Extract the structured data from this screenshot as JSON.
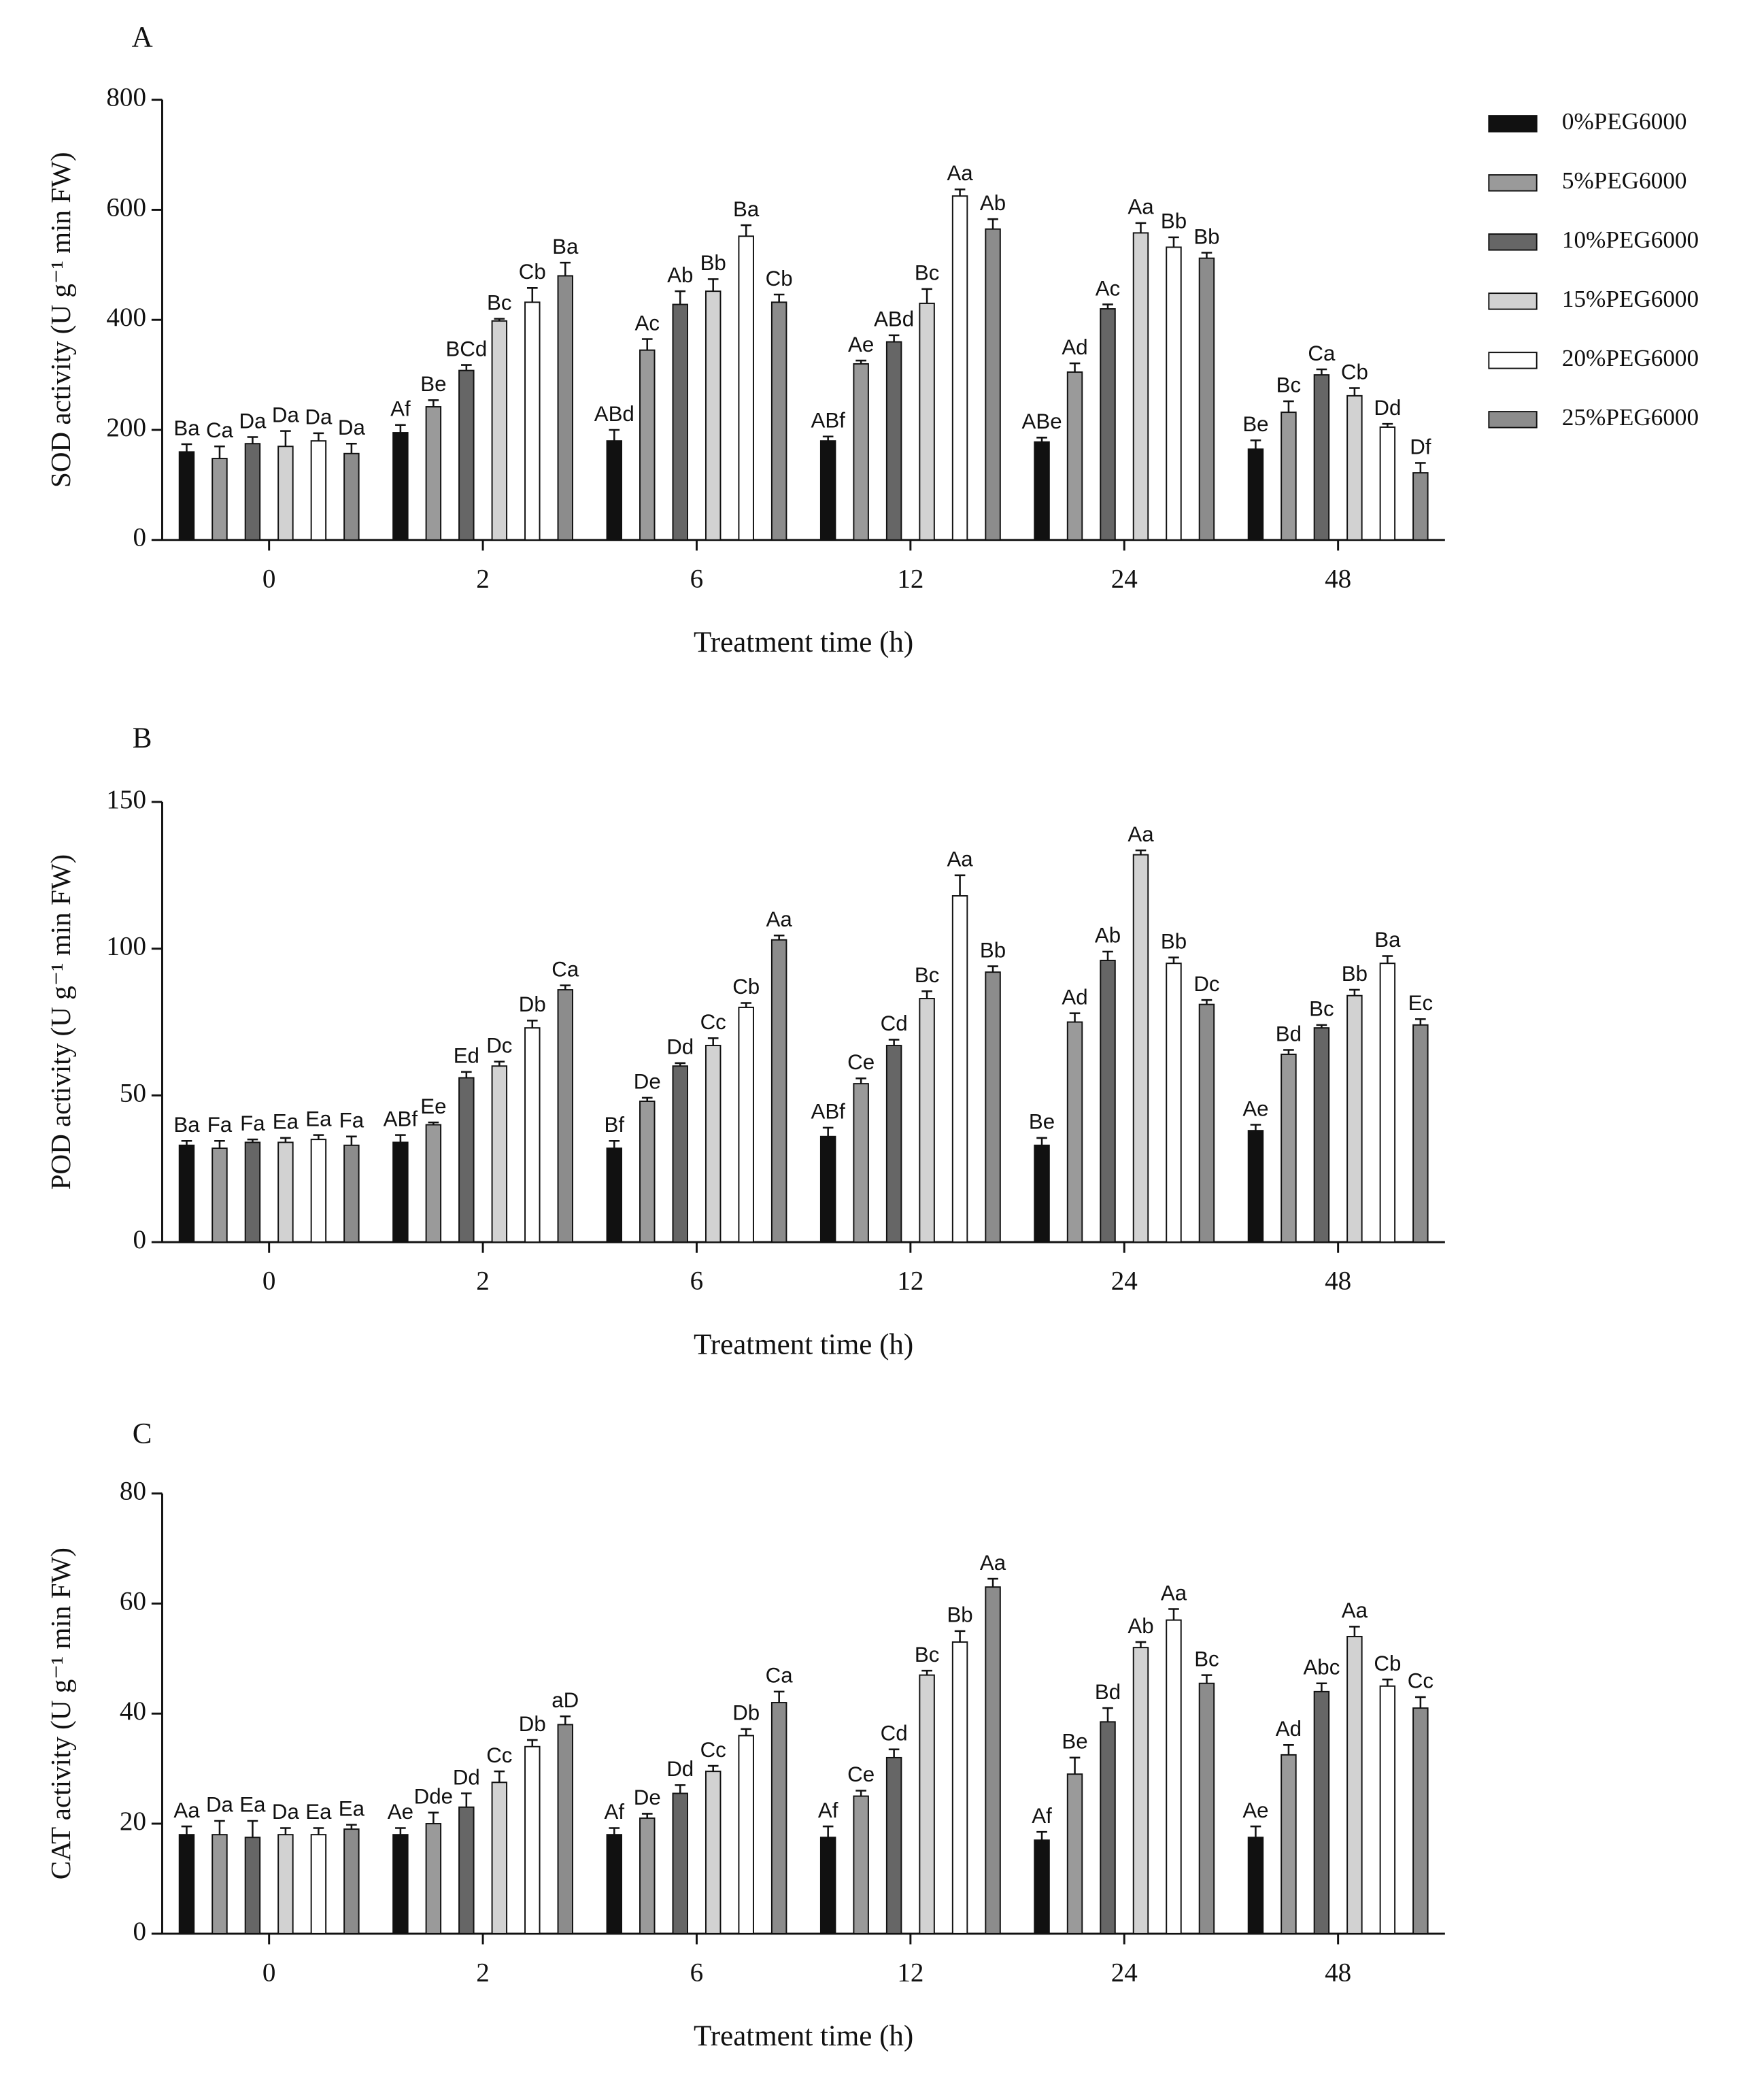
{
  "chart_data": [
    {
      "type": "bar",
      "panel": "A",
      "xlabel": "Treatment time (h)",
      "ylabel": "SOD activity (U g⁻¹ min FW)",
      "categories": [
        "0",
        "2",
        "6",
        "12",
        "24",
        "48"
      ],
      "ylim": [
        0,
        800
      ],
      "yticks": [
        0,
        200,
        400,
        600,
        800
      ],
      "legend": "right",
      "series": [
        {
          "name": "0%PEG6000",
          "color": "#111111",
          "values": [
            160,
            195,
            180,
            180,
            178,
            165
          ],
          "errors": [
            14,
            14,
            20,
            8,
            8,
            16
          ],
          "letters": [
            "Ba",
            "Af",
            "ABd",
            "ABf",
            "ABe",
            "Be"
          ]
        },
        {
          "name": "5%PEG6000",
          "color": "#9a9a9a",
          "values": [
            148,
            242,
            345,
            320,
            305,
            232
          ],
          "errors": [
            22,
            12,
            20,
            6,
            16,
            20
          ],
          "letters": [
            "Ca",
            "Be",
            "Ac",
            "Ae",
            "Ad",
            "Bc"
          ]
        },
        {
          "name": "10%PEG6000",
          "color": "#666666",
          "values": [
            175,
            308,
            428,
            360,
            420,
            300
          ],
          "errors": [
            12,
            10,
            24,
            12,
            8,
            10
          ],
          "letters": [
            "Da",
            "BCd",
            "Ab",
            "ABd",
            "Ac",
            "Ca"
          ]
        },
        {
          "name": "15%PEG6000",
          "color": "#d2d2d2",
          "values": [
            170,
            398,
            452,
            430,
            558,
            262
          ],
          "errors": [
            28,
            4,
            22,
            26,
            18,
            14
          ],
          "letters": [
            "Da",
            "Bc",
            "Bb",
            "Bc",
            "Aa",
            "Cb"
          ]
        },
        {
          "name": "20%PEG6000",
          "color": "#ffffff",
          "values": [
            180,
            432,
            552,
            625,
            532,
            205
          ],
          "errors": [
            14,
            26,
            20,
            12,
            18,
            6
          ],
          "letters": [
            "Da",
            "Cb",
            "Ba",
            "Aa",
            "Bb",
            "Dd"
          ]
        },
        {
          "name": "25%PEG6000",
          "color": "#8c8c8c",
          "values": [
            157,
            480,
            432,
            565,
            512,
            122
          ],
          "errors": [
            18,
            24,
            14,
            18,
            10,
            18
          ],
          "letters": [
            "Da",
            "Ba",
            "Cb",
            "Ab",
            "Bb",
            "Df"
          ]
        }
      ]
    },
    {
      "type": "bar",
      "panel": "B",
      "xlabel": "Treatment time (h)",
      "ylabel": "POD activity (U g⁻¹ min FW)",
      "categories": [
        "0",
        "2",
        "6",
        "12",
        "24",
        "48"
      ],
      "ylim": [
        0,
        150
      ],
      "yticks": [
        0,
        50,
        100,
        150
      ],
      "series": [
        {
          "name": "0%PEG6000",
          "color": "#111111",
          "values": [
            33,
            34,
            32,
            36,
            33,
            38
          ],
          "errors": [
            1.5,
            2.5,
            2.5,
            3,
            2.5,
            2
          ],
          "letters": [
            "Ba",
            "ABf",
            "Bf",
            "ABf",
            "Be",
            "Ae"
          ]
        },
        {
          "name": "5%PEG6000",
          "color": "#9a9a9a",
          "values": [
            32,
            40,
            48,
            54,
            75,
            64
          ],
          "errors": [
            2.5,
            0.8,
            1.2,
            1.8,
            3,
            1.5
          ],
          "letters": [
            "Fa",
            "Ee",
            "De",
            "Ce",
            "Ad",
            "Bd"
          ]
        },
        {
          "name": "10%PEG6000",
          "color": "#666666",
          "values": [
            34,
            56,
            60,
            67,
            96,
            73
          ],
          "errors": [
            1,
            2,
            1,
            2,
            3,
            1
          ],
          "letters": [
            "Fa",
            "Ed",
            "Dd",
            "Cd",
            "Ab",
            "Bc"
          ]
        },
        {
          "name": "15%PEG6000",
          "color": "#d2d2d2",
          "values": [
            34,
            60,
            67,
            83,
            132,
            84
          ],
          "errors": [
            1.5,
            1.5,
            2.5,
            2.5,
            1.5,
            2
          ],
          "letters": [
            "Ea",
            "Dc",
            "Cc",
            "Bc",
            "Aa",
            "Bb"
          ]
        },
        {
          "name": "20%PEG6000",
          "color": "#ffffff",
          "values": [
            35,
            73,
            80,
            118,
            95,
            95
          ],
          "errors": [
            1.5,
            2.5,
            1.5,
            7,
            2,
            2.5
          ],
          "letters": [
            "Ea",
            "Db",
            "Cb",
            "Aa",
            "Bb",
            "Ba"
          ]
        },
        {
          "name": "25%PEG6000",
          "color": "#8c8c8c",
          "values": [
            33,
            86,
            103,
            92,
            81,
            74
          ],
          "errors": [
            3,
            1.5,
            1.5,
            2,
            1.5,
            2
          ],
          "letters": [
            "Fa",
            "Ca",
            "Aa",
            "Bb",
            "Dc",
            "Ec"
          ]
        }
      ]
    },
    {
      "type": "bar",
      "panel": "C",
      "xlabel": "Treatment time (h)",
      "ylabel": "CAT activity (U g⁻¹ min FW)",
      "categories": [
        "0",
        "2",
        "6",
        "12",
        "24",
        "48"
      ],
      "ylim": [
        0,
        80
      ],
      "yticks": [
        0,
        20,
        40,
        60,
        80
      ],
      "series": [
        {
          "name": "0%PEG6000",
          "color": "#111111",
          "values": [
            18,
            18,
            18,
            17.5,
            17,
            17.5
          ],
          "errors": [
            1.5,
            1.2,
            1.2,
            2,
            1.5,
            2
          ],
          "letters": [
            "Aa",
            "Ae",
            "Af",
            "Af",
            "Af",
            "Ae"
          ]
        },
        {
          "name": "5%PEG6000",
          "color": "#9a9a9a",
          "values": [
            18,
            20,
            21,
            25,
            29,
            32.5
          ],
          "errors": [
            2.5,
            2,
            0.8,
            1,
            3,
            1.8
          ],
          "letters": [
            "Da",
            "Dde",
            "De",
            "Ce",
            "Be",
            "Ad"
          ]
        },
        {
          "name": "10%PEG6000",
          "color": "#666666",
          "values": [
            17.5,
            23,
            25.5,
            32,
            38.5,
            44
          ],
          "errors": [
            3,
            2.5,
            1.5,
            1.5,
            2.5,
            1.5
          ],
          "letters": [
            "Ea",
            "Dd",
            "Dd",
            "Cd",
            "Bd",
            "Abc"
          ]
        },
        {
          "name": "15%PEG6000",
          "color": "#d2d2d2",
          "values": [
            18,
            27.5,
            29.5,
            47,
            52,
            54
          ],
          "errors": [
            1.2,
            2,
            1,
            0.8,
            1,
            1.8
          ],
          "letters": [
            "Da",
            "Cc",
            "Cc",
            "Bc",
            "Ab",
            "Aa"
          ]
        },
        {
          "name": "20%PEG6000",
          "color": "#ffffff",
          "values": [
            18,
            34,
            36,
            53,
            57,
            45
          ],
          "errors": [
            1.2,
            1.2,
            1.2,
            2,
            2,
            1.2
          ],
          "letters": [
            "Ea",
            "Db",
            "Db",
            "Bb",
            "Aa",
            "Cb"
          ]
        },
        {
          "name": "25%PEG6000",
          "color": "#8c8c8c",
          "values": [
            19,
            38,
            42,
            63,
            45.5,
            41
          ],
          "errors": [
            0.8,
            1.5,
            2,
            1.5,
            1.5,
            2
          ],
          "letters": [
            "Ea",
            "aD",
            "Ca",
            "Aa",
            "Bc",
            "Cc"
          ]
        }
      ]
    }
  ]
}
